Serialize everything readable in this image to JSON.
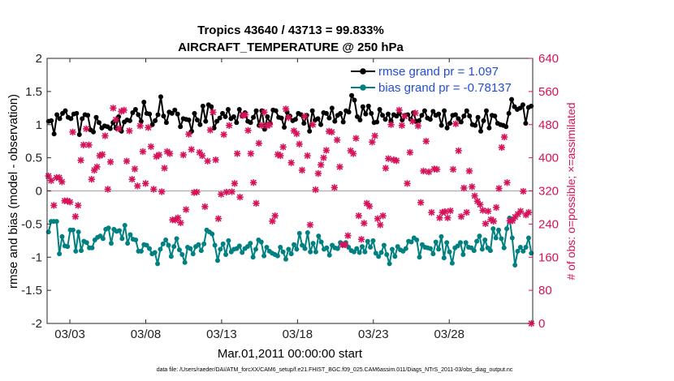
{
  "chart_data": {
    "type": "line",
    "title": "Tropics 43640 / 43713 = 99.833%",
    "subtitle": "AIRCRAFT_TEMPERATURE @ 250 hPa",
    "xlabel": "Mar.01,2011 00:00:00 start",
    "ylabel": "rmse and bias (model - observation)",
    "ylabel_right": "# of obs: o=possible; ×=assimilated",
    "footnote": "data file: /Users/raeder/DAI/ATM_forcXX/CAM6_setup/f.e21.FHIST_BGC.f09_025.CAM6assim.011/Diags_NTrS_2011-03/obs_diag_output.nc",
    "xlim": [
      1.5,
      33.5
    ],
    "ylim": [
      -2,
      2
    ],
    "ylim_right": [
      0,
      640
    ],
    "x_ticks": [
      3,
      8,
      13,
      18,
      23,
      28
    ],
    "x_tick_labels": [
      "03/03",
      "03/08",
      "03/13",
      "03/18",
      "03/23",
      "03/28"
    ],
    "y_ticks": [
      -2,
      -1.5,
      -1,
      -0.5,
      0,
      0.5,
      1,
      1.5,
      2
    ],
    "y_tick_labels": [
      "-2",
      "-1.5",
      "-1",
      "-0.5",
      "0",
      "0.5",
      "1",
      "1.5",
      "2"
    ],
    "y_right_ticks": [
      0,
      80,
      160,
      240,
      320,
      400,
      480,
      560,
      640
    ],
    "y_right_tick_labels": [
      "0",
      "80",
      "160",
      "240",
      "320",
      "400",
      "480",
      "560",
      "640"
    ],
    "series": [
      {
        "name": "rmse grand pr = 1.097",
        "color": "#000000",
        "axis": "left",
        "values": [
          1.05,
          1.06,
          0.86,
          1.15,
          1.09,
          1.17,
          1.21,
          1.11,
          1.09,
          1.16,
          1.17,
          0.85,
          1.09,
          1.15,
          1.14,
          0.92,
          0.89,
          1.11,
          1.03,
          0.95,
          0.98,
          0.97,
          0.94,
          1.03,
          0.95,
          1.12,
          0.9,
          1.04,
          1.07,
          1.06,
          1.18,
          1.23,
          1.15,
          1.05,
          1.34,
          1.17,
          1.16,
          1.0,
          1.06,
          1.15,
          1.42,
          1.13,
          1.03,
          1.19,
          1.17,
          1.22,
          1.16,
          0.97,
          1.09,
          1.08,
          1.07,
          0.9,
          1.17,
          1.07,
          1.0,
          1.28,
          1.05,
          1.3,
          1.27,
          0.95,
          1.05,
          1.1,
          1.17,
          1.12,
          1.23,
          1.09,
          1.12,
          1.03,
          1.23,
          1.13,
          1.18,
          1.05,
          1.03,
          1.11,
          1.21,
          0.99,
          1.21,
          0.93,
          1.12,
          1.02,
          1.22,
          1.21,
          1.11,
          1.1,
          0.96,
          1.19,
          1.13,
          1.06,
          1.08,
          1.17,
          1.15,
          1.02,
          1.14,
          0.9,
          1.21,
          1.07,
          1.09,
          1.0,
          1.18,
          1.17,
          1.1,
          1.25,
          1.05,
          1.14,
          1.17,
          1.04,
          1.21,
          1.19,
          1.44,
          1.37,
          1.12,
          1.07,
          1.27,
          1.16,
          1.28,
          1.17,
          1.03,
          1.04,
          1.23,
          1.14,
          1.08,
          1.16,
          1.06,
          1.15,
          1.13,
          1.17,
          1.07,
          1.14,
          1.15,
          1.08,
          1.18,
          1.05,
          1.06,
          1.14,
          1.21,
          1.1,
          1.08,
          1.2,
          1.14,
          1.16,
          0.99,
          1.21,
          0.95,
          1.02,
          1.14,
          1.15,
          1.09,
          1.04,
          1.13,
          1.21,
          1.13,
          1.0,
          0.99,
          1.11,
          0.9,
          1.06,
          1.21,
          0.95,
          1.14,
          1.13,
          1.02,
          1.0,
          0.99,
          0.97,
          1.17,
          1.38,
          1.27,
          1.23,
          1.25,
          1.3,
          1.02,
          1.26,
          1.28
        ]
      },
      {
        "name": "bias grand pr = -0.78137",
        "color": "#008080",
        "axis": "left",
        "values": [
          -0.62,
          -0.46,
          -0.46,
          -0.46,
          -0.95,
          -0.69,
          -0.83,
          -0.84,
          -0.59,
          -0.59,
          -0.91,
          -0.62,
          -0.9,
          -0.76,
          -0.78,
          -0.86,
          -0.86,
          -0.74,
          -0.7,
          -0.68,
          -0.72,
          -0.58,
          -0.56,
          -0.79,
          -0.58,
          -0.61,
          -0.6,
          -0.72,
          -0.52,
          -0.79,
          -0.66,
          -0.73,
          -0.74,
          -0.91,
          -0.91,
          -0.81,
          -0.82,
          -0.87,
          -0.95,
          -0.93,
          -1.1,
          -0.88,
          -0.8,
          -0.74,
          -0.82,
          -0.99,
          -0.84,
          -0.72,
          -0.89,
          -0.96,
          -1.08,
          -0.85,
          -0.87,
          -0.95,
          -0.84,
          -0.81,
          -0.9,
          -0.8,
          -0.59,
          -0.62,
          -0.65,
          -0.82,
          -1.05,
          -0.88,
          -0.8,
          -0.96,
          -0.75,
          -0.92,
          -0.88,
          -0.87,
          -0.83,
          -0.93,
          -0.87,
          -0.84,
          -0.79,
          -1.0,
          -0.88,
          -0.74,
          -0.77,
          -0.98,
          -0.85,
          -0.91,
          -0.94,
          -0.96,
          -0.98,
          -0.85,
          -0.92,
          -1.03,
          -0.88,
          -0.95,
          -0.81,
          -0.88,
          -0.64,
          -0.82,
          -0.87,
          -0.63,
          -0.92,
          -0.79,
          -0.92,
          -0.68,
          -0.77,
          -0.88,
          -0.86,
          -0.97,
          -0.82,
          -0.86,
          -0.87,
          -0.78,
          -0.82,
          -0.78,
          -0.85,
          -0.9,
          -0.92,
          -0.87,
          -0.93,
          -0.84,
          -0.92,
          -0.76,
          -0.85,
          -0.75,
          -0.94,
          -0.99,
          -0.93,
          -0.82,
          -0.96,
          -1.1,
          -0.88,
          -0.99,
          -0.84,
          -0.89,
          -0.91,
          -0.87,
          -0.76,
          -0.77,
          -0.71,
          -0.74,
          -1.0,
          -0.81,
          -0.85,
          -0.86,
          -0.87,
          -0.95,
          -0.77,
          -0.88,
          -0.69,
          -1.01,
          -0.78,
          -0.92,
          -1.09,
          -0.86,
          -0.83,
          -0.78,
          -0.96,
          -0.78,
          -0.85,
          -0.86,
          -0.9,
          -0.76,
          -0.68,
          -0.88,
          -0.74,
          -0.86,
          -0.9,
          -0.57,
          -0.71,
          -0.59,
          -0.72,
          -0.86,
          -0.57,
          -0.41,
          -0.71,
          -1.12,
          -0.91,
          -0.85,
          -0.91,
          -0.85,
          -0.71,
          -0.94
        ]
      },
      {
        "name": "possible",
        "color": "#d6115a",
        "axis": "right",
        "marker": "o",
        "values": [
          356,
          345,
          285,
          352,
          352,
          342,
          296,
          296,
          293,
          462,
          258,
          285,
          394,
          431,
          470,
          431,
          348,
          370,
          378,
          405,
          408,
          453,
          324,
          390,
          520,
          492,
          470,
          512,
          515,
          392,
          465,
          348,
          373,
          332,
          477,
          415,
          338,
          473,
          427,
          324,
          403,
          407,
          318,
          375,
          415,
          410,
          250,
          250,
          255,
          243,
          407,
          275,
          457,
          420,
          316,
          317,
          413,
          405,
          282,
          392,
          467,
          510,
          395,
          253,
          312,
          456,
          317,
          478,
          318,
          338,
          410,
          305,
          502,
          504,
          466,
          410,
          340,
          290,
          435,
          478,
          510,
          477,
          480,
          247,
          260,
          408,
          405,
          426,
          518,
          497,
          388,
          465,
          458,
          433,
          370,
          500,
          405,
          238,
          480,
          323,
          362,
          383,
          400,
          418,
          464,
          462,
          328,
          443,
          378,
          190,
          190,
          212,
          417,
          410,
          447,
          260,
          203,
          242,
          290,
          283,
          438,
          453,
          253,
          238,
          260,
          375,
          398,
          480,
          395,
          393,
          515,
          478,
          500,
          338,
          413,
          488,
          508,
          477,
          292,
          368,
          440,
          366,
          268,
          373,
          372,
          255,
          268,
          270,
          255,
          272,
          372,
          482,
          417,
          258,
          327,
          268,
          368,
          330,
          308,
          295,
          287,
          273,
          241,
          271,
          251,
          247,
          280,
          326,
          425,
          450,
          340,
          248,
          248,
          257,
          264,
          271,
          319,
          262,
          268,
          0
        ]
      }
    ]
  }
}
